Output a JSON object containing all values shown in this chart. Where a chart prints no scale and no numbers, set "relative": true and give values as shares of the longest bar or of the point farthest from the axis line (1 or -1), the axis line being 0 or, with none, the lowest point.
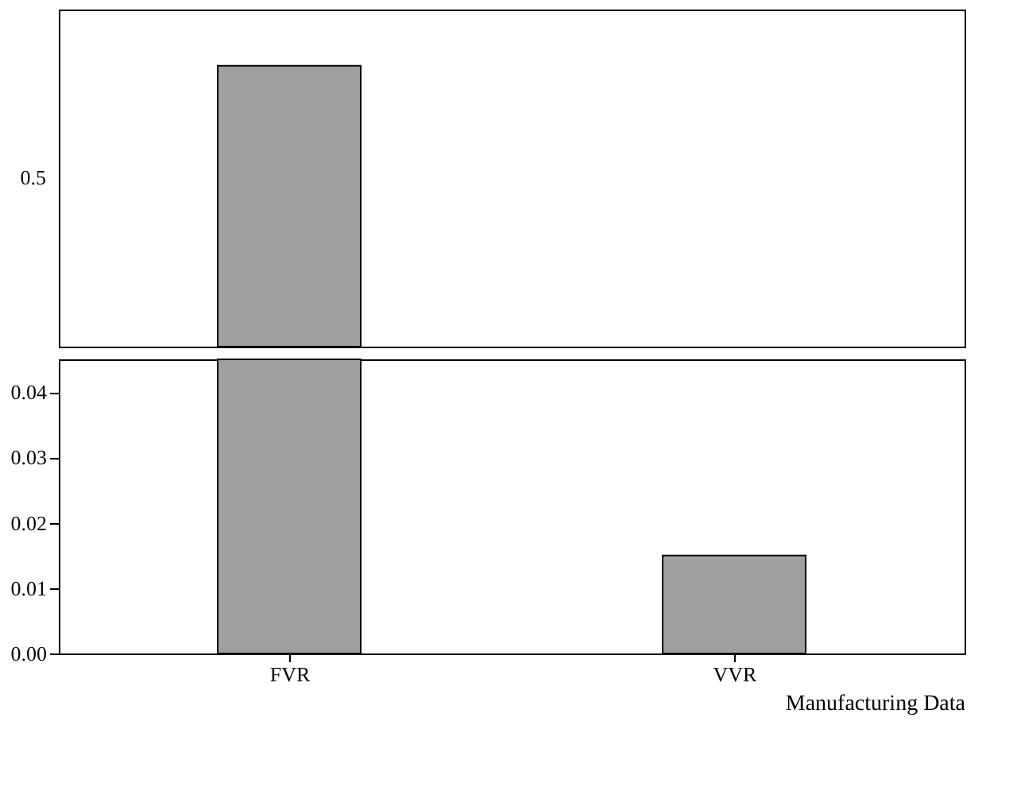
{
  "chart_data": [
    {
      "type": "bar",
      "categories": [
        null,
        null
      ],
      "values": [
        1,
        null
      ],
      "color": "#a0a0a0",
      "relative": true,
      "annotations": [
        "0.5"
      ]
    },
    {
      "type": "bar",
      "categories": [
        "FVR",
        "VVR"
      ],
      "values": [
        0.045,
        0.015
      ],
      "color": "#a0a0a0",
      "ylim": [
        0,
        0.045
      ],
      "yticks": [
        {
          "value": 0,
          "label": "0.00"
        },
        0.01,
        0.02,
        0.03,
        0.04
      ],
      "grid": false,
      "xlabel": "Manufacturing Data"
    }
  ]
}
